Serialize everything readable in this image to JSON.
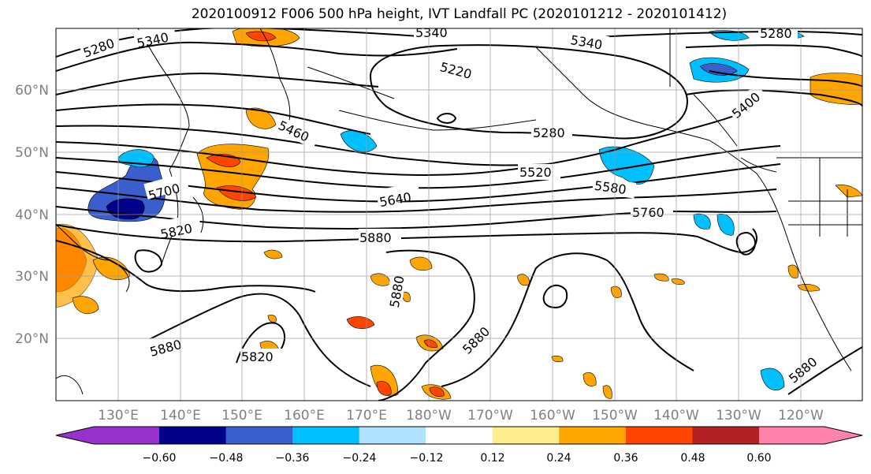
{
  "title": "2020100912 F006 500 hPa height, IVT Landfall PC (2020101212 - 2020101412)",
  "axes": {
    "lon_labels": [
      "130°E",
      "140°E",
      "150°E",
      "160°E",
      "170°E",
      "180°W",
      "170°W",
      "160°W",
      "150°W",
      "140°W",
      "130°W",
      "120°W"
    ],
    "lat_labels": [
      "60°N",
      "50°N",
      "40°N",
      "30°N",
      "20°N"
    ],
    "tick_color": "#808080"
  },
  "contour_labels": [
    "5280",
    "5340",
    "5340",
    "5340",
    "5280",
    "5220",
    "5280",
    "5400",
    "5460",
    "5520",
    "5580",
    "5640",
    "5700",
    "5760",
    "5820",
    "5880",
    "5880",
    "5880",
    "5880",
    "5820",
    "5880"
  ],
  "colorbar": {
    "colors": [
      "#9932cc",
      "#00008b",
      "#3a5fcd",
      "#00bfff",
      "#b0e2ff",
      "#ffffff",
      "#ffec8b",
      "#ffa500",
      "#ff4500",
      "#b22222",
      "#ff82ab"
    ],
    "tick_labels": [
      "−0.60",
      "−0.48",
      "−0.36",
      "−0.24",
      "−0.12",
      "0.12",
      "0.24",
      "0.36",
      "0.48",
      "0.60"
    ]
  }
}
